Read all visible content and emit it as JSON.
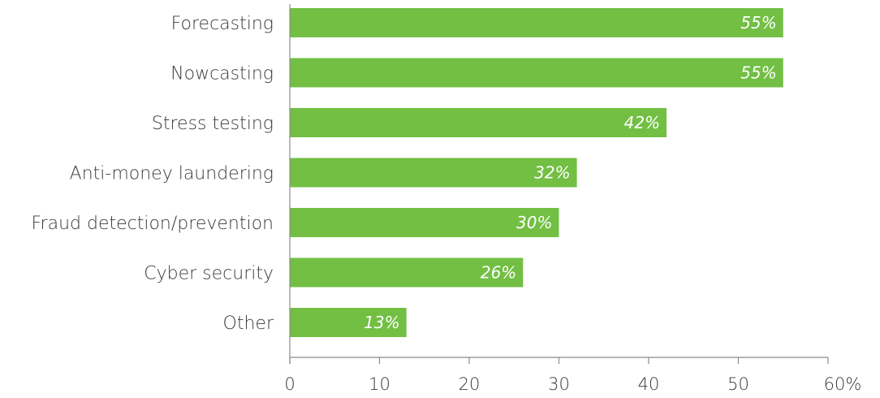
{
  "chart_data": {
    "type": "bar",
    "orientation": "horizontal",
    "categories": [
      "Forecasting",
      "Nowcasting",
      "Stress testing",
      "Anti-money laundering",
      "Fraud detection/prevention",
      "Cyber security",
      "Other"
    ],
    "values": [
      55,
      55,
      42,
      32,
      30,
      26,
      13
    ],
    "data_labels": [
      "55%",
      "55%",
      "42%",
      "32%",
      "30%",
      "26%",
      "13%"
    ],
    "x_ticks": [
      "0",
      "10",
      "20",
      "30",
      "40",
      "50",
      "60%"
    ],
    "xlim": [
      0,
      60
    ],
    "grid": false,
    "legend": "none",
    "bar_color": "#72bf44",
    "title": "",
    "xlabel": "",
    "ylabel": ""
  }
}
